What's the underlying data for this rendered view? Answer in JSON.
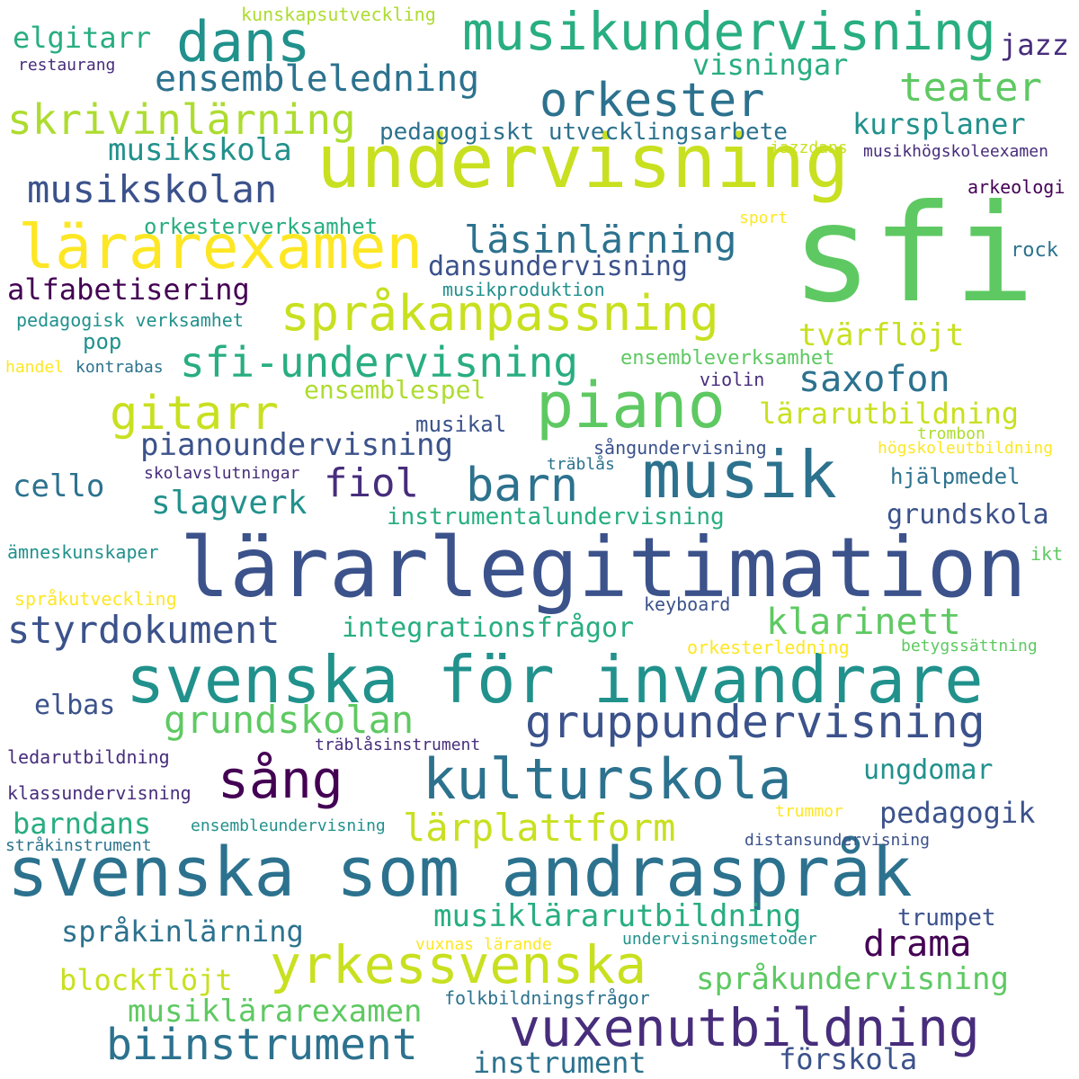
{
  "palette": {
    "dark_purple": "#440154",
    "purple": "#472d7b",
    "indigo": "#3b528b",
    "blue": "#2c728e",
    "teal": "#21918c",
    "green_teal": "#28ae80",
    "green": "#5ec962",
    "light_green": "#addc30",
    "yellow_green": "#c8e020",
    "yellow": "#fde725"
  },
  "words": [
    {
      "text": "sfi",
      "color": "#5ec962"
    },
    {
      "text": "undervisning",
      "color": "#c8e020"
    },
    {
      "text": "lärarlegitimation",
      "color": "#3b528b"
    },
    {
      "text": "svenska som andraspråk",
      "color": "#2c728e"
    },
    {
      "text": "svenska för invandrare",
      "color": "#21918c"
    },
    {
      "text": "musik",
      "color": "#2c728e"
    },
    {
      "text": "piano",
      "color": "#5ec962"
    },
    {
      "text": "lärarexamen",
      "color": "#fde725"
    },
    {
      "text": "musikundervisning",
      "color": "#28ae80"
    },
    {
      "text": "dans",
      "color": "#21918c"
    },
    {
      "text": "kulturskola",
      "color": "#2c728e"
    },
    {
      "text": "vuxenutbildning",
      "color": "#472d7b"
    },
    {
      "text": "yrkessvenska",
      "color": "#c8e020"
    },
    {
      "text": "språkanpassning",
      "color": "#c8e020"
    },
    {
      "text": "gruppundervisning",
      "color": "#3b528b"
    },
    {
      "text": "biinstrument",
      "color": "#2c728e"
    },
    {
      "text": "orkester",
      "color": "#2c728e"
    },
    {
      "text": "sfi-undervisning",
      "color": "#28ae80"
    },
    {
      "text": "gitarr",
      "color": "#c8e020"
    },
    {
      "text": "barn",
      "color": "#2c728e"
    },
    {
      "text": "sång",
      "color": "#440154"
    },
    {
      "text": "skrivinlärning",
      "color": "#addc30"
    },
    {
      "text": "grundskolan",
      "color": "#5ec962"
    },
    {
      "text": "lärplattform",
      "color": "#c8e020"
    },
    {
      "text": "musikskolan",
      "color": "#3b528b"
    },
    {
      "text": "läsinlärning",
      "color": "#2c728e"
    },
    {
      "text": "styrdokument",
      "color": "#3b528b"
    },
    {
      "text": "klarinett",
      "color": "#5ec962"
    },
    {
      "text": "fiol",
      "color": "#472d7b"
    },
    {
      "text": "teater",
      "color": "#5ec962"
    },
    {
      "text": "ensembleledning",
      "color": "#2c728e"
    },
    {
      "text": "saxofon",
      "color": "#2c728e"
    },
    {
      "text": "drama",
      "color": "#440154"
    },
    {
      "text": "musiklärarutbildning",
      "color": "#28ae80"
    },
    {
      "text": "språkundervisning",
      "color": "#5ec962"
    },
    {
      "text": "musiklärarexamen",
      "color": "#5ec962"
    },
    {
      "text": "pianoundervisning",
      "color": "#3b528b"
    },
    {
      "text": "slagverk",
      "color": "#21918c"
    },
    {
      "text": "lärarutbildning",
      "color": "#c8e020"
    },
    {
      "text": "tvärflöjt",
      "color": "#c8e020"
    },
    {
      "text": "kursplaner",
      "color": "#21918c"
    },
    {
      "text": "musikskola",
      "color": "#21918c"
    },
    {
      "text": "elgitarr",
      "color": "#28ae80"
    },
    {
      "text": "visningar",
      "color": "#28ae80"
    },
    {
      "text": "jazz",
      "color": "#472d7b"
    },
    {
      "text": "alfabetisering",
      "color": "#440154"
    },
    {
      "text": "dansundervisning",
      "color": "#3b528b"
    },
    {
      "text": "cello",
      "color": "#2c728e"
    },
    {
      "text": "grundskola",
      "color": "#3b528b"
    },
    {
      "text": "instrumentalundervisning",
      "color": "#28ae80"
    },
    {
      "text": "integrationsfrågor",
      "color": "#28ae80"
    },
    {
      "text": "barndans",
      "color": "#28ae80"
    },
    {
      "text": "pedagogik",
      "color": "#3b528b"
    },
    {
      "text": "ungdomar",
      "color": "#21918c"
    },
    {
      "text": "språkinlärning",
      "color": "#2c728e"
    },
    {
      "text": "blockflöjt",
      "color": "#c8e020"
    },
    {
      "text": "instrument",
      "color": "#2c728e"
    },
    {
      "text": "förskola",
      "color": "#3b528b"
    },
    {
      "text": "elbas",
      "color": "#3b528b"
    },
    {
      "text": "trumpet",
      "color": "#3b528b"
    },
    {
      "text": "ensemblespel",
      "color": "#addc30"
    },
    {
      "text": "ensembleverksamhet",
      "color": "#5ec962"
    },
    {
      "text": "pedagogiskt utvecklingsarbete",
      "color": "#2c728e"
    },
    {
      "text": "orkesterverksamhet",
      "color": "#28ae80"
    },
    {
      "text": "pedagogisk verksamhet",
      "color": "#21918c"
    },
    {
      "text": "musikal",
      "color": "#3b528b"
    },
    {
      "text": "hjälpmedel",
      "color": "#2c728e"
    },
    {
      "text": "pop",
      "color": "#21918c"
    },
    {
      "text": "kunskapsutveckling",
      "color": "#addc30"
    },
    {
      "text": "restaurang",
      "color": "#472d7b"
    },
    {
      "text": "musikproduktion",
      "color": "#21918c"
    },
    {
      "text": "handel",
      "color": "#fde725"
    },
    {
      "text": "kontrabas",
      "color": "#2c728e"
    },
    {
      "text": "violin",
      "color": "#472d7b"
    },
    {
      "text": "sångundervisning",
      "color": "#3b528b"
    },
    {
      "text": "träblås",
      "color": "#2c728e"
    },
    {
      "text": "skolavslutningar",
      "color": "#472d7b"
    },
    {
      "text": "trombon",
      "color": "#addc30"
    },
    {
      "text": "högskoleutbildning",
      "color": "#fde725"
    },
    {
      "text": "jazzdans",
      "color": "#c8e020"
    },
    {
      "text": "musikhögskoleexamen",
      "color": "#472d7b"
    },
    {
      "text": "arkeologi",
      "color": "#440154"
    },
    {
      "text": "sport",
      "color": "#fde725"
    },
    {
      "text": "rock",
      "color": "#2c728e"
    },
    {
      "text": "ämneskunskaper",
      "color": "#21918c"
    },
    {
      "text": "ikt",
      "color": "#5ec962"
    },
    {
      "text": "språkutveckling",
      "color": "#fde725"
    },
    {
      "text": "keyboard",
      "color": "#3b528b"
    },
    {
      "text": "orkesterledning",
      "color": "#fde725"
    },
    {
      "text": "betygssättning",
      "color": "#5ec962"
    },
    {
      "text": "träblåsinstrument",
      "color": "#472d7b"
    },
    {
      "text": "ledarutbildning",
      "color": "#472d7b"
    },
    {
      "text": "klassundervisning",
      "color": "#472d7b"
    },
    {
      "text": "ensembleundervisning",
      "color": "#21918c"
    },
    {
      "text": "stråkinstrument",
      "color": "#2c728e"
    },
    {
      "text": "trummor",
      "color": "#fde725"
    },
    {
      "text": "distansundervisning",
      "color": "#3b528b"
    },
    {
      "text": "undervisningsmetoder",
      "color": "#21918c"
    },
    {
      "text": "vuxnas lärande",
      "color": "#fde725"
    },
    {
      "text": "folkbildningsfrågor",
      "color": "#2c728e"
    }
  ]
}
